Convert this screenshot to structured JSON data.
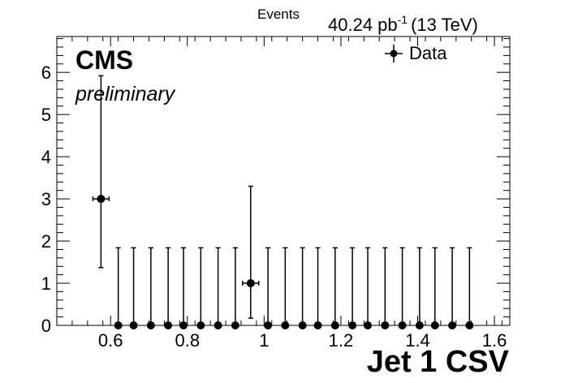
{
  "chart_data": {
    "type": "scatter",
    "title": "",
    "ylabel": "Events",
    "xlabel": "Jet 1 CSV",
    "lumi_label": "40.24 pb",
    "lumi_exponent": "-1",
    "energy_label": "(13 TeV)",
    "experiment_label": "CMS",
    "status_label": "preliminary",
    "xlim": [
      0.46,
      1.64
    ],
    "ylim": [
      0,
      6.85
    ],
    "x_ticks": [
      0.6,
      0.8,
      1.0,
      1.2,
      1.4,
      1.6
    ],
    "x_tick_labels": [
      "0.6",
      "0.8",
      "1",
      "1.2",
      "1.4",
      "1.6"
    ],
    "y_ticks": [
      0,
      1,
      2,
      3,
      4,
      5,
      6
    ],
    "y_tick_labels": [
      "0",
      "1",
      "2",
      "3",
      "4",
      "5",
      "6"
    ],
    "legend_position": "top-right",
    "series": [
      {
        "name": "Data",
        "x_halfwidth": 0.021,
        "points": [
          {
            "x": 0.575,
            "y": 3,
            "err_low": 1.63,
            "err_high": 2.92
          },
          {
            "x": 0.62,
            "y": 0,
            "err_low": 0,
            "err_high": 1.84
          },
          {
            "x": 0.66,
            "y": 0,
            "err_low": 0,
            "err_high": 1.84
          },
          {
            "x": 0.705,
            "y": 0,
            "err_low": 0,
            "err_high": 1.84
          },
          {
            "x": 0.75,
            "y": 0,
            "err_low": 0,
            "err_high": 1.84
          },
          {
            "x": 0.79,
            "y": 0,
            "err_low": 0,
            "err_high": 1.84
          },
          {
            "x": 0.835,
            "y": 0,
            "err_low": 0,
            "err_high": 1.84
          },
          {
            "x": 0.88,
            "y": 0,
            "err_low": 0,
            "err_high": 1.84
          },
          {
            "x": 0.925,
            "y": 0,
            "err_low": 0,
            "err_high": 1.84
          },
          {
            "x": 0.965,
            "y": 1,
            "err_low": 0.83,
            "err_high": 2.3
          },
          {
            "x": 1.01,
            "y": 0,
            "err_low": 0,
            "err_high": 1.84
          },
          {
            "x": 1.055,
            "y": 0,
            "err_low": 0,
            "err_high": 1.84
          },
          {
            "x": 1.1,
            "y": 0,
            "err_low": 0,
            "err_high": 1.84
          },
          {
            "x": 1.14,
            "y": 0,
            "err_low": 0,
            "err_high": 1.84
          },
          {
            "x": 1.185,
            "y": 0,
            "err_low": 0,
            "err_high": 1.84
          },
          {
            "x": 1.23,
            "y": 0,
            "err_low": 0,
            "err_high": 1.84
          },
          {
            "x": 1.27,
            "y": 0,
            "err_low": 0,
            "err_high": 1.84
          },
          {
            "x": 1.315,
            "y": 0,
            "err_low": 0,
            "err_high": 1.84
          },
          {
            "x": 1.36,
            "y": 0,
            "err_low": 0,
            "err_high": 1.84
          },
          {
            "x": 1.405,
            "y": 0,
            "err_low": 0,
            "err_high": 1.84
          },
          {
            "x": 1.445,
            "y": 0,
            "err_low": 0,
            "err_high": 1.84
          },
          {
            "x": 1.49,
            "y": 0,
            "err_low": 0,
            "err_high": 1.84
          },
          {
            "x": 1.535,
            "y": 0,
            "err_low": 0,
            "err_high": 1.84
          }
        ]
      }
    ]
  },
  "colors": {
    "frame": "#000000",
    "marker": "#000000",
    "background": "#ffffff"
  }
}
